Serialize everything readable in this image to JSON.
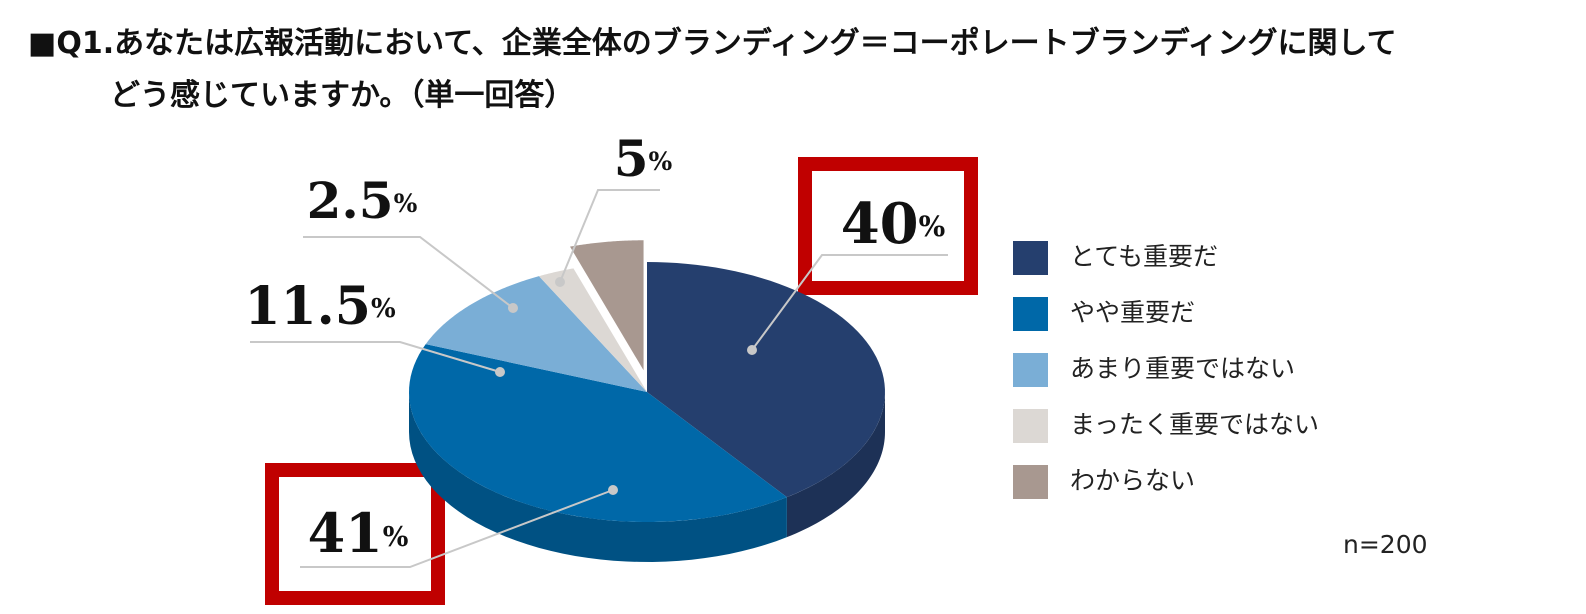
{
  "chart_data": {
    "type": "pie3d",
    "title": "■Q1.あなたは広報活動において、企業全体のブランディング＝コーポレートブランディングに関して\nどう感じていますか。（単一回答）",
    "categories": [
      "とても重要だ",
      "やや重要だ",
      "あまり重要ではない",
      "まったく重要ではない",
      "わからない"
    ],
    "values": [
      40,
      41,
      11.5,
      2.5,
      5
    ],
    "value_labels": [
      "40%",
      "41%",
      "11.5%",
      "2.5%",
      "5%"
    ],
    "colors": [
      "#253f6e",
      "#0068a8",
      "#7aaed6",
      "#dcd8d4",
      "#a89890"
    ],
    "note": "n=200"
  }
}
